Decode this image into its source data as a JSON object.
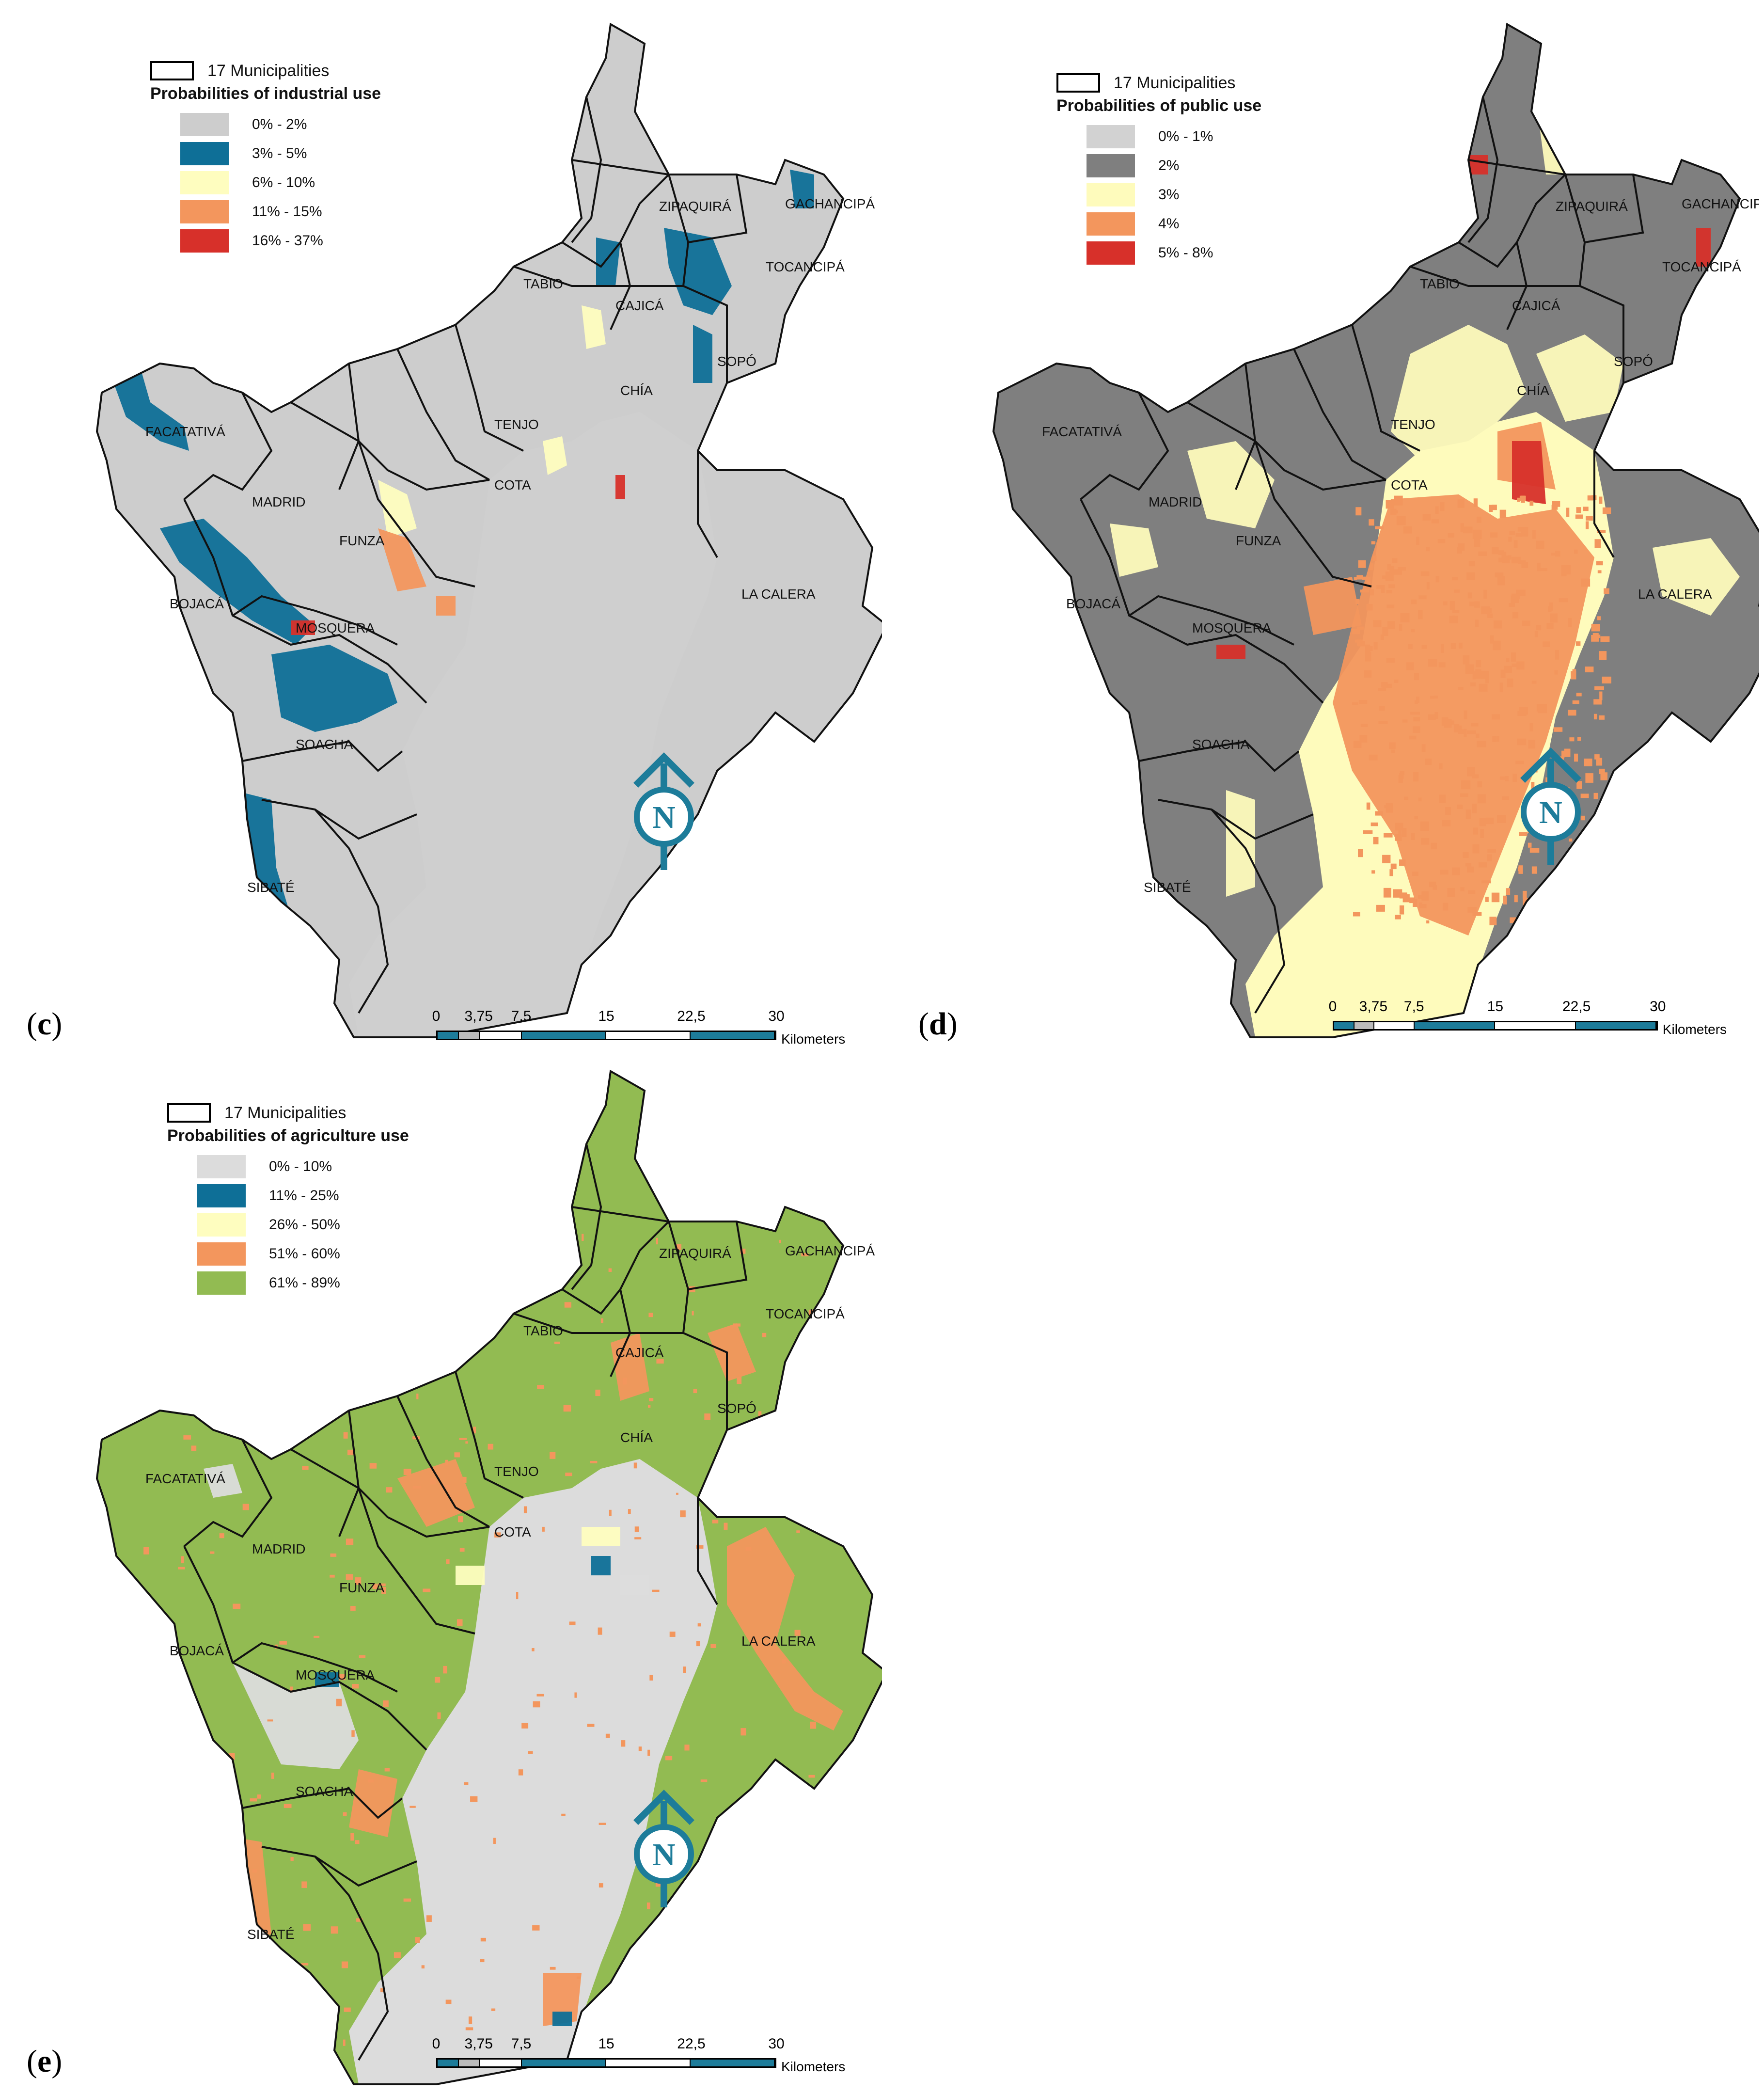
{
  "municipality_legend_label": "17 Municipalities",
  "scale": {
    "ticks": [
      "0",
      "3,75",
      "7,5",
      "15",
      "22,5",
      "30"
    ],
    "units": "Kilometers"
  },
  "north_letter": "N",
  "colors": {
    "background_gray": "#d2d2d2",
    "bogota_gray": "#cfcfcf",
    "boundary": "#111111",
    "north_arrow": "#1d7c9a"
  },
  "municipalities": [
    "ZIPAQUIRÁ",
    "GACHANCIPÁ",
    "TOCANCIPÁ",
    "TABIO",
    "CAJICÁ",
    "SOPÓ",
    "CHÍA",
    "TENJO",
    "FACATATIVÁ",
    "MADRID",
    "COTA",
    "FUNZA",
    "BOJACÁ",
    "MOSQUERA",
    "LA CALERA",
    "SOACHA",
    "SIBATÉ"
  ],
  "panels": [
    {
      "label": "c",
      "legend_title": "Probabilities of industrial use",
      "classes": [
        {
          "label": "0% - 2%",
          "color": "#cdcdcd"
        },
        {
          "label": "3% - 5%",
          "color": "#0e6f97"
        },
        {
          "label": "6% - 10%",
          "color": "#fefdbf"
        },
        {
          "label": "11% - 15%",
          "color": "#f3965d"
        },
        {
          "label": "16% - 37%",
          "color": "#d7302a"
        }
      ]
    },
    {
      "label": "d",
      "legend_title": "Probabilities of public use",
      "classes": [
        {
          "label": "0% - 1%",
          "color": "#d2d2d2"
        },
        {
          "label": "2%",
          "color": "#7f7f7f"
        },
        {
          "label": "3%",
          "color": "#fefbbc"
        },
        {
          "label": "4%",
          "color": "#f3965d"
        },
        {
          "label": "5% - 8%",
          "color": "#d7302a"
        }
      ]
    },
    {
      "label": "e",
      "legend_title": "Probabilities of agriculture use",
      "classes": [
        {
          "label": "0% - 10%",
          "color": "#dcdcdc"
        },
        {
          "label": "11% - 25%",
          "color": "#0e6f97"
        },
        {
          "label": "26% - 50%",
          "color": "#fefdbf"
        },
        {
          "label": "51% - 60%",
          "color": "#f3965d"
        },
        {
          "label": "61% - 89%",
          "color": "#92bb52"
        }
      ]
    }
  ]
}
